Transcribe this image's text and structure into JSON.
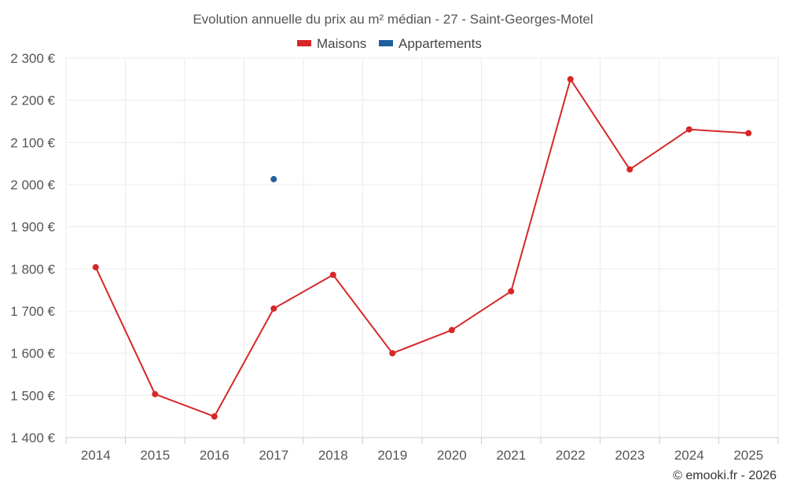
{
  "chart_data": {
    "type": "line",
    "title": "Evolution annuelle du prix au m² médian - 27 - Saint-Georges-Motel",
    "categories": [
      "2014",
      "2015",
      "2016",
      "2017",
      "2018",
      "2019",
      "2020",
      "2021",
      "2022",
      "2023",
      "2024",
      "2025"
    ],
    "series": [
      {
        "name": "Maisons",
        "color": "#d62728",
        "values": [
          1804,
          1503,
          1450,
          1706,
          1786,
          1600,
          1655,
          1747,
          2250,
          2036,
          2131,
          2122
        ]
      },
      {
        "name": "Appartements",
        "color": "#1f5f9e",
        "values": [
          null,
          null,
          null,
          2013,
          null,
          null,
          null,
          null,
          null,
          null,
          null,
          null
        ]
      }
    ],
    "ylim": [
      1400,
      2300
    ],
    "yticks": [
      1400,
      1500,
      1600,
      1700,
      1800,
      1900,
      2000,
      2100,
      2200,
      2300
    ],
    "ytick_labels": [
      "1 400 €",
      "1 500 €",
      "1 600 €",
      "1 700 €",
      "1 800 €",
      "1 900 €",
      "2 000 €",
      "2 100 €",
      "2 200 €",
      "2 300 €"
    ],
    "xlabel": "",
    "ylabel": "",
    "grid": true,
    "legend_position": "top-center"
  },
  "credit": "© emooki.fr - 2026"
}
